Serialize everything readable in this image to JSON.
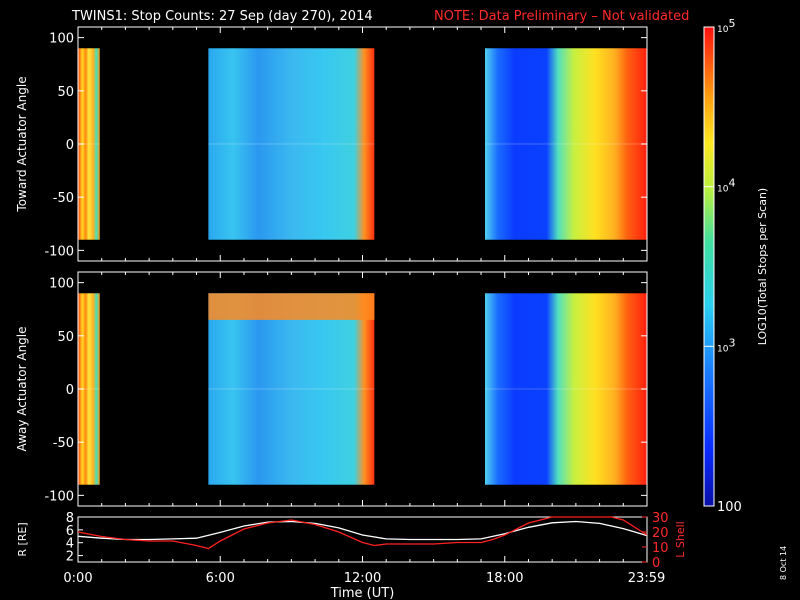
{
  "title": {
    "main": "TWINS1: Stop Counts: 27 Sep (day 270), 2014",
    "note": "NOTE: Data Preliminary – Not validated"
  },
  "colorbar": {
    "label": "LOG10(Total Stops per Scan)",
    "range": [
      100,
      100000
    ],
    "ticks": [
      {
        "label": "10",
        "sup": "5",
        "value": 100000
      },
      {
        "label": "10",
        "sup": "4",
        "value": 10000
      },
      {
        "label": "10",
        "sup": "3",
        "value": 1000
      },
      {
        "label": "100",
        "sup": "",
        "value": 100
      }
    ]
  },
  "stamp": "8 Oct 14",
  "chart_data": [
    {
      "type": "heatmap",
      "ylabel": "Toward Actuator Angle",
      "xlim": [
        "0:00",
        "24:00"
      ],
      "ylim": [
        -110,
        110
      ],
      "yticks": [
        "100",
        "50",
        "0",
        "-50",
        "-100"
      ],
      "ytick_values": [
        100,
        50,
        0,
        -50,
        -100
      ],
      "scale": "log10",
      "data_blocks": [
        {
          "start": "0:00",
          "end": "0:55",
          "angle_range": [
            -90,
            90
          ],
          "level": 30000
        },
        {
          "start": "5:30",
          "end": "12:30",
          "angle_range": [
            -90,
            90
          ],
          "level": 1500
        },
        {
          "start": "17:10",
          "end": "24:00",
          "angle_range": [
            -90,
            90
          ],
          "level": 10000
        }
      ]
    },
    {
      "type": "heatmap",
      "ylabel": "Away Actuator Angle",
      "xlim": [
        "0:00",
        "24:00"
      ],
      "ylim": [
        -110,
        110
      ],
      "yticks": [
        "100",
        "50",
        "0",
        "-50",
        "-100"
      ],
      "ytick_values": [
        100,
        50,
        0,
        -50,
        -100
      ],
      "scale": "log10",
      "data_blocks": [
        {
          "start": "0:00",
          "end": "0:55",
          "angle_range": [
            -90,
            90
          ],
          "level": 30000
        },
        {
          "start": "5:30",
          "end": "12:30",
          "angle_range": [
            -90,
            90
          ],
          "level": 1500
        },
        {
          "start": "17:10",
          "end": "24:00",
          "angle_range": [
            -90,
            90
          ],
          "level": 10000
        }
      ]
    },
    {
      "type": "line",
      "ylabel": "R [RE]",
      "ylabel_right": "L Shell",
      "xlabel": "Time (UT)",
      "xticks": [
        "0:00",
        "6:00",
        "12:00",
        "18:00",
        "23:59"
      ],
      "xtick_values": [
        0,
        6,
        12,
        18,
        23.98
      ],
      "yticks": [
        "8",
        "6",
        "4",
        "2"
      ],
      "ytick_values": [
        8,
        6,
        4,
        2
      ],
      "ylim": [
        1,
        8
      ],
      "yticks_right": [
        "30",
        "20",
        "10",
        "0"
      ],
      "ytick_values_right": [
        30,
        20,
        10,
        0
      ],
      "ylim_right": [
        0,
        30
      ],
      "series": [
        {
          "axis": "left",
          "color": "#ffffff",
          "x": [
            0,
            1,
            2,
            3,
            4,
            5,
            6,
            7,
            8,
            9,
            10,
            11,
            12,
            13,
            14,
            15,
            16,
            17,
            18,
            19,
            20,
            21,
            22,
            23,
            24
          ],
          "y": [
            5.0,
            4.7,
            4.5,
            4.5,
            4.6,
            4.7,
            5.6,
            6.6,
            7.2,
            7.3,
            7.0,
            6.3,
            5.2,
            4.6,
            4.5,
            4.5,
            4.5,
            4.6,
            5.4,
            6.4,
            7.1,
            7.3,
            7.0,
            6.2,
            5.1
          ]
        },
        {
          "axis": "right",
          "color": "#ff2020",
          "x": [
            0,
            1,
            2,
            3,
            4,
            5,
            5.5,
            6,
            7,
            8,
            9,
            10,
            11,
            12,
            12.5,
            13,
            14,
            15,
            16,
            17,
            17.5,
            18,
            19,
            20,
            22.5,
            23,
            24
          ],
          "y": [
            20,
            17,
            15,
            14,
            14,
            11,
            9,
            14,
            22,
            26,
            28,
            25,
            20,
            13,
            11,
            12,
            12,
            12,
            13,
            13,
            15,
            18,
            26,
            30,
            30,
            28,
            18
          ]
        }
      ]
    }
  ]
}
